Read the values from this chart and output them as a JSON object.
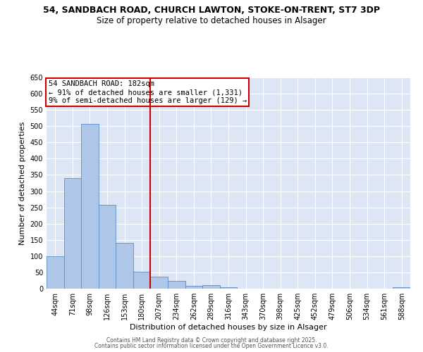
{
  "title1": "54, SANDBACH ROAD, CHURCH LAWTON, STOKE-ON-TRENT, ST7 3DP",
  "title2": "Size of property relative to detached houses in Alsager",
  "xlabel": "Distribution of detached houses by size in Alsager",
  "ylabel": "Number of detached properties",
  "categories": [
    "44sqm",
    "71sqm",
    "98sqm",
    "126sqm",
    "153sqm",
    "180sqm",
    "207sqm",
    "234sqm",
    "262sqm",
    "289sqm",
    "316sqm",
    "343sqm",
    "370sqm",
    "398sqm",
    "425sqm",
    "452sqm",
    "479sqm",
    "506sqm",
    "534sqm",
    "561sqm",
    "588sqm"
  ],
  "values": [
    100,
    340,
    507,
    257,
    140,
    52,
    36,
    24,
    9,
    10,
    5,
    0,
    0,
    0,
    0,
    0,
    0,
    0,
    0,
    0,
    5
  ],
  "bar_color": "#aec6e8",
  "bar_edge_color": "#5b8dc8",
  "vline_x": 5.5,
  "vline_color": "#cc0000",
  "annotation_text": "54 SANDBACH ROAD: 182sqm\n← 91% of detached houses are smaller (1,331)\n9% of semi-detached houses are larger (129) →",
  "annotation_box_color": "#cc0000",
  "ylim": [
    0,
    650
  ],
  "yticks": [
    0,
    50,
    100,
    150,
    200,
    250,
    300,
    350,
    400,
    450,
    500,
    550,
    600,
    650
  ],
  "background_color": "#dce6f5",
  "grid_color": "#ffffff",
  "footer1": "Contains HM Land Registry data © Crown copyright and database right 2025.",
  "footer2": "Contains public sector information licensed under the Open Government Licence v3.0.",
  "title_fontsize": 9,
  "subtitle_fontsize": 8.5,
  "axis_label_fontsize": 8,
  "tick_fontsize": 7,
  "annotation_fontsize": 7.5,
  "footer_fontsize": 5.5
}
